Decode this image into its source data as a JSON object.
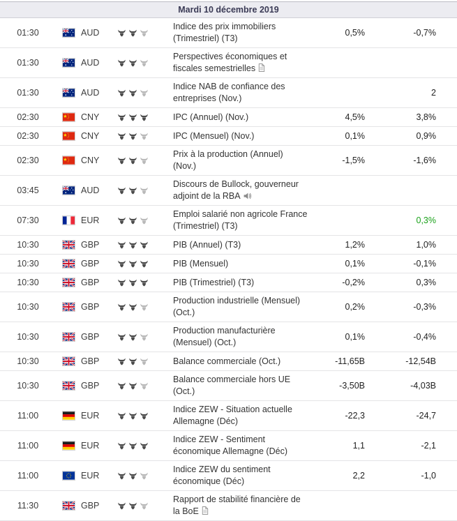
{
  "header": {
    "date_label": "Mardi 10 décembre 2019"
  },
  "colors": {
    "green": "#1ba21b",
    "bull_filled": "#4a4a4a",
    "bull_empty": "#b8b8b8"
  },
  "rows": [
    {
      "time": "01:30",
      "flag": "au",
      "flag_country": "Australia",
      "currency": "AUD",
      "importance": 2,
      "event": "Indice des prix immobiliers (Trimestriel) (T3)",
      "icon": null,
      "forecast": "0,5%",
      "previous": "-0,7%",
      "previous_color": null
    },
    {
      "time": "01:30",
      "flag": "au",
      "flag_country": "Australia",
      "currency": "AUD",
      "importance": 2,
      "event": "Perspectives économiques et fiscales semestrielles",
      "icon": "document",
      "forecast": "",
      "previous": "",
      "previous_color": null
    },
    {
      "time": "01:30",
      "flag": "au",
      "flag_country": "Australia",
      "currency": "AUD",
      "importance": 2,
      "event": "Indice NAB de confiance des entreprises (Nov.)",
      "icon": null,
      "forecast": "",
      "previous": "2",
      "previous_color": null
    },
    {
      "time": "02:30",
      "flag": "cn",
      "flag_country": "China",
      "currency": "CNY",
      "importance": 3,
      "event": "IPC (Annuel) (Nov.)",
      "icon": null,
      "forecast": "4,5%",
      "previous": "3,8%",
      "previous_color": null
    },
    {
      "time": "02:30",
      "flag": "cn",
      "flag_country": "China",
      "currency": "CNY",
      "importance": 2,
      "event": "IPC (Mensuel) (Nov.)",
      "icon": null,
      "forecast": "0,1%",
      "previous": "0,9%",
      "previous_color": null
    },
    {
      "time": "02:30",
      "flag": "cn",
      "flag_country": "China",
      "currency": "CNY",
      "importance": 2,
      "event": "Prix à la production (Annuel) (Nov.)",
      "icon": null,
      "forecast": "-1,5%",
      "previous": "-1,6%",
      "previous_color": null
    },
    {
      "time": "03:45",
      "flag": "au",
      "flag_country": "Australia",
      "currency": "AUD",
      "importance": 2,
      "event": "Discours de Bullock, gouverneur adjoint de la RBA",
      "icon": "speaker",
      "forecast": "",
      "previous": "",
      "previous_color": null
    },
    {
      "time": "07:30",
      "flag": "fr",
      "flag_country": "France",
      "currency": "EUR",
      "importance": 2,
      "event": "Emploi salarié non agricole France (Trimestriel) (T3)",
      "icon": null,
      "forecast": "",
      "previous": "0,3%",
      "previous_color": "green"
    },
    {
      "time": "10:30",
      "flag": "gb",
      "flag_country": "United Kingdom",
      "currency": "GBP",
      "importance": 3,
      "event": "PIB (Annuel) (T3)",
      "icon": null,
      "forecast": "1,2%",
      "previous": "1,0%",
      "previous_color": null
    },
    {
      "time": "10:30",
      "flag": "gb",
      "flag_country": "United Kingdom",
      "currency": "GBP",
      "importance": 3,
      "event": "PIB (Mensuel)",
      "icon": null,
      "forecast": "0,1%",
      "previous": "-0,1%",
      "previous_color": null
    },
    {
      "time": "10:30",
      "flag": "gb",
      "flag_country": "United Kingdom",
      "currency": "GBP",
      "importance": 3,
      "event": "PIB (Trimestriel) (T3)",
      "icon": null,
      "forecast": "-0,2%",
      "previous": "0,3%",
      "previous_color": null
    },
    {
      "time": "10:30",
      "flag": "gb",
      "flag_country": "United Kingdom",
      "currency": "GBP",
      "importance": 2,
      "event": "Production industrielle (Mensuel) (Oct.)",
      "icon": null,
      "forecast": "0,2%",
      "previous": "-0,3%",
      "previous_color": null
    },
    {
      "time": "10:30",
      "flag": "gb",
      "flag_country": "United Kingdom",
      "currency": "GBP",
      "importance": 2,
      "event": "Production manufacturière (Mensuel) (Oct.)",
      "icon": null,
      "forecast": "0,1%",
      "previous": "-0,4%",
      "previous_color": null
    },
    {
      "time": "10:30",
      "flag": "gb",
      "flag_country": "United Kingdom",
      "currency": "GBP",
      "importance": 2,
      "event": "Balance commerciale (Oct.)",
      "icon": null,
      "forecast": "-11,65B",
      "previous": "-12,54B",
      "previous_color": null
    },
    {
      "time": "10:30",
      "flag": "gb",
      "flag_country": "United Kingdom",
      "currency": "GBP",
      "importance": 2,
      "event": "Balance commerciale hors UE (Oct.)",
      "icon": null,
      "forecast": "-3,50B",
      "previous": "-4,03B",
      "previous_color": null
    },
    {
      "time": "11:00",
      "flag": "de",
      "flag_country": "Germany",
      "currency": "EUR",
      "importance": 3,
      "event": "Indice ZEW - Situation actuelle Allemagne (Déc)",
      "icon": null,
      "forecast": "-22,3",
      "previous": "-24,7",
      "previous_color": null
    },
    {
      "time": "11:00",
      "flag": "de",
      "flag_country": "Germany",
      "currency": "EUR",
      "importance": 3,
      "event": "Indice ZEW - Sentiment économique Allemagne (Déc)",
      "icon": null,
      "forecast": "1,1",
      "previous": "-2,1",
      "previous_color": null
    },
    {
      "time": "11:00",
      "flag": "eu",
      "flag_country": "European Union",
      "currency": "EUR",
      "importance": 2,
      "event": "Indice ZEW du sentiment économique (Déc)",
      "icon": null,
      "forecast": "2,2",
      "previous": "-1,0",
      "previous_color": null
    },
    {
      "time": "11:30",
      "flag": "gb",
      "flag_country": "United Kingdom",
      "currency": "GBP",
      "importance": 2,
      "event": "Rapport de stabilité financière de la BoE",
      "icon": "document",
      "forecast": "",
      "previous": "",
      "previous_color": null
    }
  ]
}
